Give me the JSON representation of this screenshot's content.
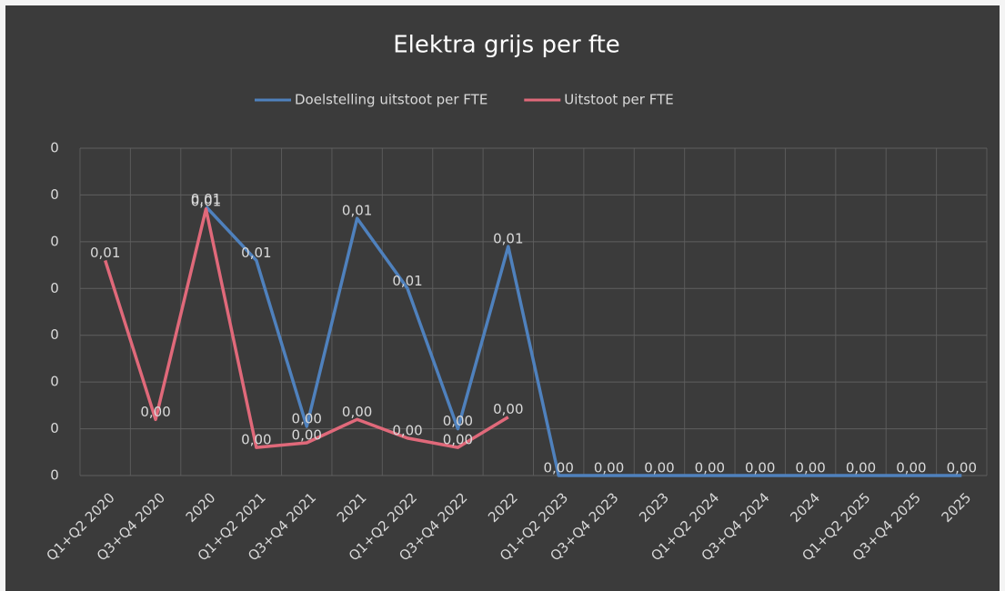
{
  "chart_data": {
    "type": "line",
    "title": "Elektra grijs per fte",
    "categories": [
      "Q1+Q2 2020",
      "Q3+Q4 2020",
      "2020",
      "Q1+Q2 2021",
      "Q3+Q4 2021",
      "2021",
      "Q1+Q2 2022",
      "Q3+Q4 2022",
      "2022",
      "Q1+Q2 2023",
      "Q3+Q4 2023",
      "2023",
      "Q1+Q2 2024",
      "Q3+Q4 2024",
      "2024",
      "Q1+Q2 2025",
      "Q3+Q4 2025",
      "2025"
    ],
    "series": [
      {
        "name": "Doelstelling uitstoot per FTE",
        "color": "#4f81bd",
        "values": [
          null,
          null,
          0.0115,
          0.0092,
          0.0021,
          0.011,
          0.008,
          0.002,
          0.0098,
          0,
          0,
          0,
          0,
          0,
          0,
          0,
          0,
          0
        ],
        "value_labels": [
          null,
          null,
          "0,01",
          "0,01",
          "0,00",
          "0,01",
          "0,01",
          "0,00",
          "0,01",
          "0,00",
          "0,00",
          "0,00",
          "0,00",
          "0,00",
          "0,00",
          "0,00",
          "0,00",
          "0,00"
        ]
      },
      {
        "name": "Uitstoot per FTE",
        "color": "#e0697a",
        "values": [
          0.0092,
          0.0024,
          0.0114,
          0.0012,
          0.0014,
          0.0024,
          0.0016,
          0.0012,
          0.0025,
          null,
          null,
          null,
          null,
          null,
          null,
          null,
          null,
          null
        ],
        "value_labels": [
          "0,01",
          "0,00",
          "0,01",
          "0,00",
          "0,00",
          "0,00",
          "0,00",
          "0,00",
          "0,00",
          null,
          null,
          null,
          null,
          null,
          null,
          null,
          null,
          null
        ]
      }
    ],
    "ylim": [
      0,
      0.014
    ],
    "yticks": [
      0,
      {
        "value": 0.002,
        "label": "0"
      },
      {
        "value": 0.004,
        "label": "0"
      },
      {
        "value": 0.006,
        "label": "0"
      },
      {
        "value": 0.008,
        "label": "0"
      },
      {
        "value": 0.01,
        "label": "0"
      },
      {
        "value": 0.012,
        "label": "0"
      },
      {
        "value": 0.014,
        "label": "0"
      }
    ],
    "grid": true,
    "legend": "top"
  }
}
